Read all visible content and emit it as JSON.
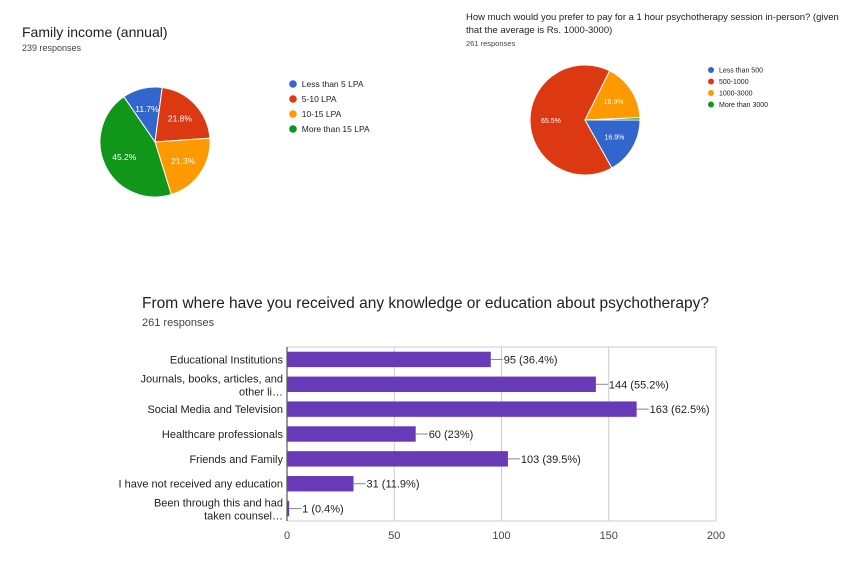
{
  "chart_data": [
    {
      "type": "pie",
      "title": "Family income (annual)",
      "subtitle": "239 responses",
      "categories": [
        "Less than 5 LPA",
        "5-10 LPA",
        "10-15 LPA",
        "More than 15 LPA"
      ],
      "values": [
        11.7,
        21.8,
        21.3,
        45.2
      ],
      "labels": [
        "11.7%",
        "21.8%",
        "21.3%",
        "45.2%"
      ],
      "colors": [
        "#3366cc",
        "#dc3912",
        "#ff9900",
        "#109618"
      ],
      "legend": "right"
    },
    {
      "type": "pie",
      "title": "How much would you prefer to pay for a 1 hour psychotherapy session in-person? (given that the average is Rs. 1000-3000)",
      "subtitle": "261 responses",
      "categories": [
        "Less than 500",
        "500-1000",
        "1000-3000",
        "More than 3000"
      ],
      "values": [
        16.9,
        65.5,
        16.9,
        0.7
      ],
      "labels": [
        "16.9%",
        "65.5%",
        "16.9%",
        ""
      ],
      "colors": [
        "#3366cc",
        "#dc3912",
        "#ff9900",
        "#109618"
      ],
      "legend": "right"
    },
    {
      "type": "bar",
      "orientation": "horizontal",
      "title": "From where have you received any knowledge or education about psychotherapy?",
      "subtitle": "261 responses",
      "categories": [
        "Educational Institutions",
        "Journals, books, articles, and other li…",
        "Social Media and Television",
        "Healthcare professionals",
        "Friends and Family",
        "I have not received any education",
        "Been through this and had taken counsel…"
      ],
      "values": [
        95,
        144,
        163,
        60,
        103,
        31,
        1
      ],
      "labels": [
        "95 (36.4%)",
        "144 (55.2%)",
        "163 (62.5%)",
        "60 (23%)",
        "103 (39.5%)",
        "31 (11.9%)",
        "1 (0.4%)"
      ],
      "xticks": [
        "0",
        "50",
        "100",
        "150",
        "200"
      ],
      "xlim": [
        0,
        200
      ],
      "color": "#673ab7",
      "grid": true
    }
  ]
}
